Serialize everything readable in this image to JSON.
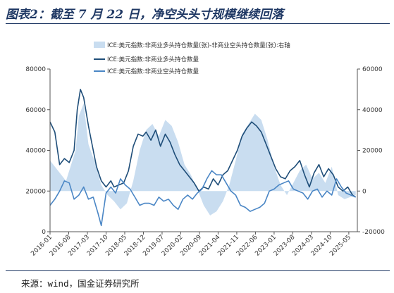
{
  "title": "图表2：截至 7 月 22 日，净空头头寸规模继续回落",
  "source": "来源：wind，国金证券研究所",
  "chart_data": {
    "type": "line",
    "legend_placement": "top-left",
    "grid": false,
    "x": [
      "2016-01",
      "2016-08",
      "2017-03",
      "2017-10",
      "2018-05",
      "2018-12",
      "2019-07",
      "2020-02",
      "2020-09",
      "2021-04",
      "2021-11",
      "2022-06",
      "2023-01",
      "2023-08",
      "2024-03",
      "2024-10",
      "2025-05"
    ],
    "left_axis": {
      "ticks": [
        "0",
        "20000",
        "40000",
        "60000",
        "80000"
      ],
      "ylim": [
        0,
        80000
      ]
    },
    "right_axis": {
      "ticks": [
        "-20000",
        "0",
        "20000",
        "40000",
        "60000"
      ],
      "ylim": [
        -20000,
        60000
      ]
    },
    "series": [
      {
        "name": "ICE:美元指数:非商业多头持仓数量(张)-非商业空头持仓数量(张):右轴",
        "kind": "area",
        "axis": "right",
        "color": "#c9ddf0",
        "points": [
          [
            2016.0,
            15000
          ],
          [
            2016.3,
            9000
          ],
          [
            2016.5,
            5000
          ],
          [
            2016.8,
            20000
          ],
          [
            2016.9,
            37000
          ],
          [
            2017.05,
            43000
          ],
          [
            2017.2,
            23000
          ],
          [
            2017.4,
            14000
          ],
          [
            2017.6,
            3000
          ],
          [
            2017.8,
            -2000
          ],
          [
            2018.0,
            -5000
          ],
          [
            2018.2,
            -9000
          ],
          [
            2018.4,
            -6000
          ],
          [
            2018.6,
            5000
          ],
          [
            2018.8,
            20000
          ],
          [
            2019.0,
            30000
          ],
          [
            2019.2,
            33000
          ],
          [
            2019.4,
            27000
          ],
          [
            2019.6,
            35000
          ],
          [
            2019.8,
            32000
          ],
          [
            2020.0,
            24000
          ],
          [
            2020.2,
            13000
          ],
          [
            2020.4,
            8000
          ],
          [
            2020.6,
            1000
          ],
          [
            2020.8,
            -7000
          ],
          [
            2021.0,
            -12000
          ],
          [
            2021.2,
            -10000
          ],
          [
            2021.4,
            -5000
          ],
          [
            2021.6,
            3000
          ],
          [
            2021.8,
            15000
          ],
          [
            2022.0,
            28000
          ],
          [
            2022.2,
            33000
          ],
          [
            2022.4,
            38000
          ],
          [
            2022.6,
            35000
          ],
          [
            2022.8,
            25000
          ],
          [
            2023.0,
            12000
          ],
          [
            2023.2,
            3000
          ],
          [
            2023.4,
            -2000
          ],
          [
            2023.6,
            4000
          ],
          [
            2023.8,
            10000
          ],
          [
            2024.0,
            13000
          ],
          [
            2024.2,
            6000
          ],
          [
            2024.4,
            9000
          ],
          [
            2024.6,
            4000
          ],
          [
            2024.8,
            12000
          ],
          [
            2025.0,
            -2000
          ],
          [
            2025.2,
            -4000
          ],
          [
            2025.55,
            -2000
          ]
        ]
      },
      {
        "name": "ICE:美元指数:非商业多头持仓数量",
        "kind": "line",
        "axis": "left",
        "color": "#1f4e79",
        "points": [
          [
            2016.0,
            54000
          ],
          [
            2016.15,
            49000
          ],
          [
            2016.3,
            33000
          ],
          [
            2016.45,
            36000
          ],
          [
            2016.6,
            34000
          ],
          [
            2016.75,
            40000
          ],
          [
            2016.85,
            60000
          ],
          [
            2016.95,
            70000
          ],
          [
            2017.05,
            66000
          ],
          [
            2017.2,
            52000
          ],
          [
            2017.3,
            44000
          ],
          [
            2017.45,
            32000
          ],
          [
            2017.6,
            25000
          ],
          [
            2017.75,
            22000
          ],
          [
            2017.9,
            25000
          ],
          [
            2018.0,
            22000
          ],
          [
            2018.15,
            23000
          ],
          [
            2018.3,
            24000
          ],
          [
            2018.45,
            30000
          ],
          [
            2018.6,
            42000
          ],
          [
            2018.75,
            48000
          ],
          [
            2018.9,
            47000
          ],
          [
            2019.0,
            49000
          ],
          [
            2019.15,
            45000
          ],
          [
            2019.3,
            50000
          ],
          [
            2019.45,
            42000
          ],
          [
            2019.6,
            48000
          ],
          [
            2019.75,
            44000
          ],
          [
            2019.9,
            38000
          ],
          [
            2020.05,
            33000
          ],
          [
            2020.2,
            30000
          ],
          [
            2020.35,
            27000
          ],
          [
            2020.5,
            24000
          ],
          [
            2020.65,
            20000
          ],
          [
            2020.8,
            22000
          ],
          [
            2020.95,
            21000
          ],
          [
            2021.1,
            26000
          ],
          [
            2021.25,
            23000
          ],
          [
            2021.4,
            28000
          ],
          [
            2021.55,
            30000
          ],
          [
            2021.7,
            35000
          ],
          [
            2021.85,
            40000
          ],
          [
            2022.0,
            47000
          ],
          [
            2022.15,
            51000
          ],
          [
            2022.3,
            54000
          ],
          [
            2022.45,
            52000
          ],
          [
            2022.6,
            49000
          ],
          [
            2022.75,
            43000
          ],
          [
            2022.9,
            37000
          ],
          [
            2023.05,
            31000
          ],
          [
            2023.2,
            27000
          ],
          [
            2023.35,
            26000
          ],
          [
            2023.5,
            30000
          ],
          [
            2023.65,
            32000
          ],
          [
            2023.8,
            35000
          ],
          [
            2023.95,
            28000
          ],
          [
            2024.1,
            22000
          ],
          [
            2024.25,
            29000
          ],
          [
            2024.4,
            33000
          ],
          [
            2024.55,
            27000
          ],
          [
            2024.7,
            31000
          ],
          [
            2024.85,
            28000
          ],
          [
            2025.0,
            22000
          ],
          [
            2025.15,
            20000
          ],
          [
            2025.3,
            22000
          ],
          [
            2025.45,
            18000
          ],
          [
            2025.55,
            17000
          ]
        ]
      },
      {
        "name": "ICE:美元指数:非商业空头持仓数量",
        "kind": "line",
        "axis": "left",
        "color": "#4a86c5",
        "points": [
          [
            2016.0,
            13000
          ],
          [
            2016.15,
            16000
          ],
          [
            2016.3,
            20000
          ],
          [
            2016.45,
            25000
          ],
          [
            2016.6,
            24000
          ],
          [
            2016.75,
            16000
          ],
          [
            2016.9,
            18000
          ],
          [
            2017.05,
            22000
          ],
          [
            2017.2,
            16000
          ],
          [
            2017.35,
            17000
          ],
          [
            2017.5,
            9000
          ],
          [
            2017.6,
            3000
          ],
          [
            2017.75,
            19000
          ],
          [
            2017.9,
            22000
          ],
          [
            2018.05,
            19000
          ],
          [
            2018.2,
            26000
          ],
          [
            2018.35,
            23000
          ],
          [
            2018.5,
            21000
          ],
          [
            2018.65,
            17000
          ],
          [
            2018.8,
            13000
          ],
          [
            2018.95,
            14000
          ],
          [
            2019.1,
            14000
          ],
          [
            2019.25,
            13000
          ],
          [
            2019.4,
            17000
          ],
          [
            2019.55,
            15000
          ],
          [
            2019.7,
            16000
          ],
          [
            2019.85,
            13000
          ],
          [
            2020.0,
            11000
          ],
          [
            2020.15,
            16000
          ],
          [
            2020.3,
            18000
          ],
          [
            2020.45,
            16000
          ],
          [
            2020.6,
            19000
          ],
          [
            2020.75,
            21000
          ],
          [
            2020.9,
            26000
          ],
          [
            2021.05,
            30000
          ],
          [
            2021.2,
            28000
          ],
          [
            2021.35,
            28000
          ],
          [
            2021.5,
            24000
          ],
          [
            2021.65,
            20000
          ],
          [
            2021.8,
            18000
          ],
          [
            2021.95,
            13000
          ],
          [
            2022.1,
            12000
          ],
          [
            2022.25,
            10000
          ],
          [
            2022.4,
            11000
          ],
          [
            2022.55,
            12000
          ],
          [
            2022.7,
            14000
          ],
          [
            2022.85,
            20000
          ],
          [
            2023.0,
            21000
          ],
          [
            2023.15,
            23000
          ],
          [
            2023.3,
            24000
          ],
          [
            2023.45,
            25000
          ],
          [
            2023.6,
            21000
          ],
          [
            2023.75,
            20000
          ],
          [
            2023.9,
            19000
          ],
          [
            2024.05,
            16000
          ],
          [
            2024.2,
            20000
          ],
          [
            2024.35,
            21000
          ],
          [
            2024.5,
            17000
          ],
          [
            2024.65,
            20000
          ],
          [
            2024.8,
            18000
          ],
          [
            2024.95,
            26000
          ],
          [
            2025.1,
            22000
          ],
          [
            2025.25,
            19000
          ],
          [
            2025.4,
            18000
          ],
          [
            2025.55,
            17000
          ]
        ]
      }
    ]
  }
}
